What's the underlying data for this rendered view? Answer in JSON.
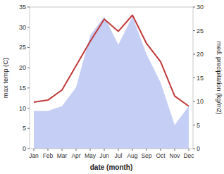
{
  "chart_data": {
    "type": "line",
    "categories": [
      "Jan",
      "Feb",
      "Mar",
      "Apr",
      "May",
      "Jun",
      "Jul",
      "Aug",
      "Sep",
      "Oct",
      "Nov",
      "Dec"
    ],
    "x_label": "date (month)",
    "y_label": "max temp (C)",
    "y2_label": "med. precipitation (kg/m2)",
    "series": [
      {
        "type": "area",
        "axis": "y2",
        "color": "#c5cef5",
        "values": [
          8,
          8,
          9,
          13,
          24,
          28,
          22,
          28,
          20,
          14,
          5,
          9
        ]
      },
      {
        "type": "line",
        "color": "#c0393b",
        "values": [
          11.5,
          12.0,
          14.5,
          20.5,
          26.5,
          32.0,
          29.0,
          33.0,
          26.0,
          21.5,
          13.0,
          10.5
        ]
      }
    ],
    "ylim": [
      0,
      35
    ],
    "yticks": [
      0,
      5,
      10,
      15,
      20,
      25,
      30,
      35
    ],
    "y2lim": [
      0,
      30
    ],
    "y2ticks": [
      0,
      5,
      10,
      15,
      20,
      25,
      30
    ],
    "grid": false
  }
}
